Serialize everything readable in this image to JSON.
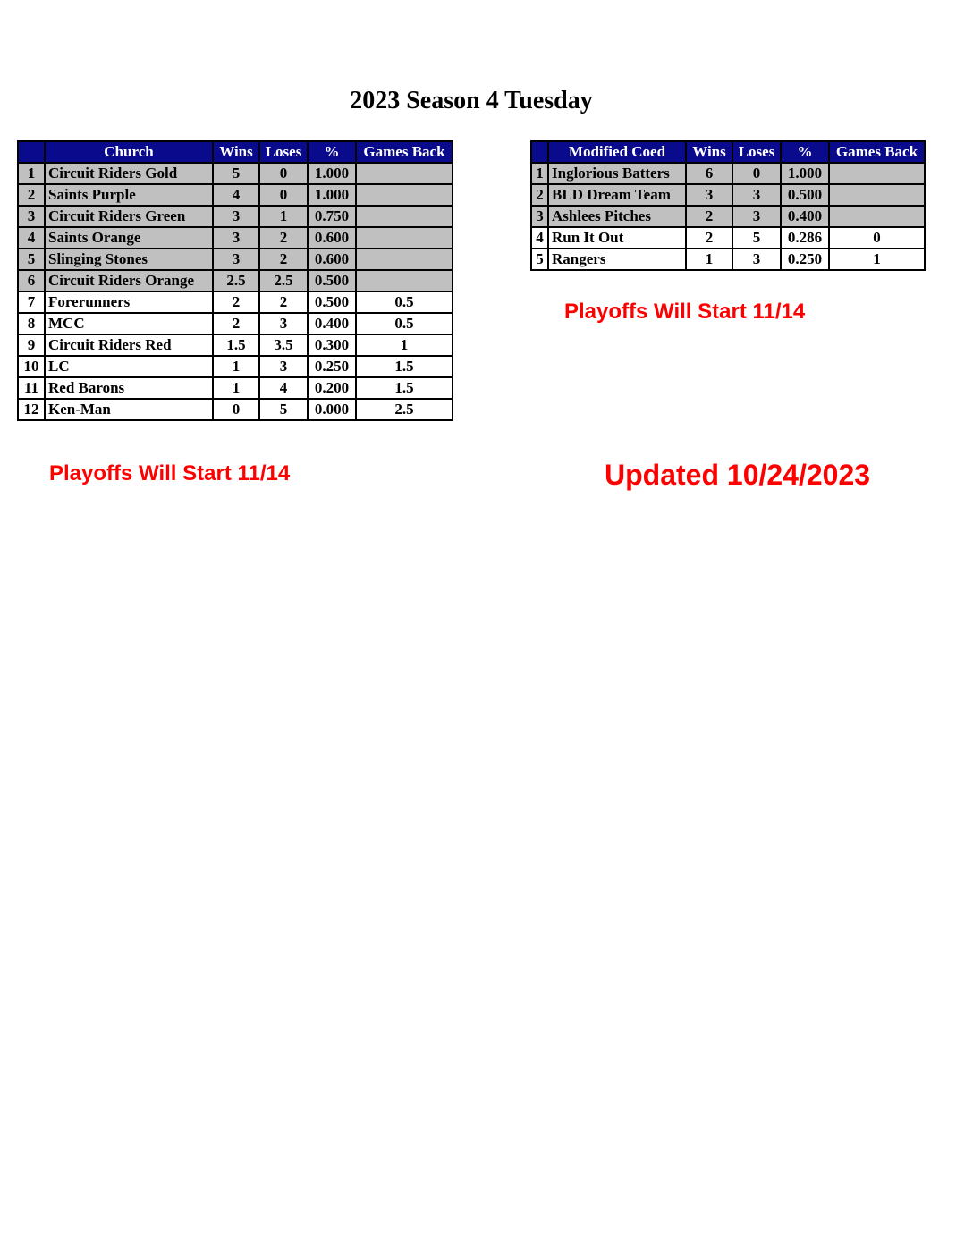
{
  "title": "2023 Season 4 Tuesday",
  "colors": {
    "header_bg": "#0a0a8c",
    "qualified_row_bg": "#c0c0c0",
    "notice": "#ff0000"
  },
  "church": {
    "headers": [
      "",
      "Church",
      "Wins",
      "Loses",
      "%",
      "Games Back"
    ],
    "rows": [
      {
        "rank": "1",
        "team": "Circuit Riders Gold",
        "wins": "5",
        "loses": "0",
        "pct": "1.000",
        "gb": "",
        "highlight": true
      },
      {
        "rank": "2",
        "team": "Saints Purple",
        "wins": "4",
        "loses": "0",
        "pct": "1.000",
        "gb": "",
        "highlight": true
      },
      {
        "rank": "3",
        "team": "Circuit Riders Green",
        "wins": "3",
        "loses": "1",
        "pct": "0.750",
        "gb": "",
        "highlight": true
      },
      {
        "rank": "4",
        "team": "Saints Orange",
        "wins": "3",
        "loses": "2",
        "pct": "0.600",
        "gb": "",
        "highlight": true
      },
      {
        "rank": "5",
        "team": "Slinging Stones",
        "wins": "3",
        "loses": "2",
        "pct": "0.600",
        "gb": "",
        "highlight": true
      },
      {
        "rank": "6",
        "team": "Circuit Riders Orange",
        "wins": "2.5",
        "loses": "2.5",
        "pct": "0.500",
        "gb": "",
        "highlight": true
      },
      {
        "rank": "7",
        "team": "Forerunners",
        "wins": "2",
        "loses": "2",
        "pct": "0.500",
        "gb": "0.5",
        "highlight": false
      },
      {
        "rank": "8",
        "team": "MCC",
        "wins": "2",
        "loses": "3",
        "pct": "0.400",
        "gb": "0.5",
        "highlight": false
      },
      {
        "rank": "9",
        "team": "Circuit Riders Red",
        "wins": "1.5",
        "loses": "3.5",
        "pct": "0.300",
        "gb": "1",
        "highlight": false
      },
      {
        "rank": "10",
        "team": "LC",
        "wins": "1",
        "loses": "3",
        "pct": "0.250",
        "gb": "1.5",
        "highlight": false
      },
      {
        "rank": "11",
        "team": "Red Barons",
        "wins": "1",
        "loses": "4",
        "pct": "0.200",
        "gb": "1.5",
        "highlight": false
      },
      {
        "rank": "12",
        "team": "Ken-Man",
        "wins": "0",
        "loses": "5",
        "pct": "0.000",
        "gb": "2.5",
        "highlight": false
      }
    ],
    "notice": "Playoffs Will Start 11/14"
  },
  "coed": {
    "headers": [
      "",
      "Modified Coed",
      "Wins",
      "Loses",
      "%",
      "Games Back"
    ],
    "rows": [
      {
        "rank": "1",
        "team": "Inglorious Batters",
        "wins": "6",
        "loses": "0",
        "pct": "1.000",
        "gb": "",
        "highlight": true
      },
      {
        "rank": "2",
        "team": "BLD Dream Team",
        "wins": "3",
        "loses": "3",
        "pct": "0.500",
        "gb": "",
        "highlight": true
      },
      {
        "rank": "3",
        "team": "Ashlees Pitches",
        "wins": "2",
        "loses": "3",
        "pct": "0.400",
        "gb": "",
        "highlight": true
      },
      {
        "rank": "4",
        "team": "Run It Out",
        "wins": "2",
        "loses": "5",
        "pct": "0.286",
        "gb": "0",
        "highlight": false
      },
      {
        "rank": "5",
        "team": "Rangers",
        "wins": "1",
        "loses": "3",
        "pct": "0.250",
        "gb": "1",
        "highlight": false
      }
    ],
    "notice": "Playoffs Will Start 11/14"
  },
  "updated": "Updated 10/24/2023"
}
